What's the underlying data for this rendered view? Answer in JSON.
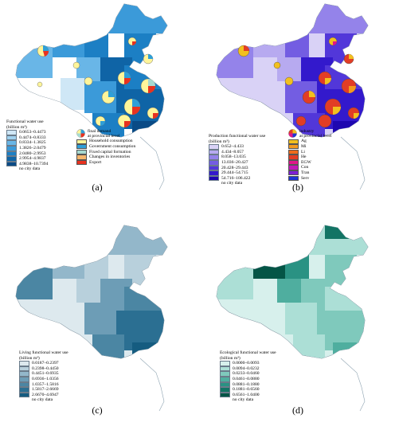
{
  "panels": {
    "a": {
      "caption": "(a)",
      "legend_title": [
        "Functional water use",
        "(billion m³)"
      ],
      "classes": [
        {
          "label": "0.0653–0.4473",
          "color": "#cfe7f6"
        },
        {
          "label": "0.4474–0.8333",
          "color": "#9fd1ef"
        },
        {
          "label": "0.8334–1.3825",
          "color": "#69b6e7"
        },
        {
          "label": "1.3826–2.0479",
          "color": "#3b9ad9"
        },
        {
          "label": "2.0480–2.9953",
          "color": "#1c7fc4"
        },
        {
          "label": "2.9954–4.9837",
          "color": "#0f64a6"
        },
        {
          "label": "4.9838–10.7394",
          "color": "#0a4b86"
        },
        {
          "label": "no city data",
          "color": "#ffffff"
        }
      ],
      "pie_legend_title": [
        "final demand",
        "at provincial level"
      ],
      "pie_categories": [
        {
          "label": "Household  consumption",
          "color": "#fff59a"
        },
        {
          "label": "Government consumption",
          "color": "#2f9fd8"
        },
        {
          "label": "Fixed capital formation",
          "color": "#a7d9d0"
        },
        {
          "label": "Changes in inventories",
          "color": "#f6b66c"
        },
        {
          "label": "Export",
          "color": "#e8321f"
        }
      ]
    },
    "b": {
      "caption": "(b)",
      "legend_title": [
        "Production functional water use",
        "(billion m³)"
      ],
      "classes": [
        {
          "label": "0.652–4.433",
          "color": "#d9d2f6"
        },
        {
          "label": "4.434–8.057",
          "color": "#b7aaf0"
        },
        {
          "label": "8.058–13.035",
          "color": "#9483ea"
        },
        {
          "label": "13.036–20.427",
          "color": "#735de2"
        },
        {
          "label": "20.428–29.443",
          "color": "#5237d9"
        },
        {
          "label": "29.444–54.715",
          "color": "#3319cc"
        },
        {
          "label": "54.716–106.422",
          "color": "#1e07b0"
        },
        {
          "label": "no city data",
          "color": "#ffffff"
        }
      ],
      "pie_legend_title": [
        "industry",
        "at provincial level"
      ],
      "pie_categories": [
        {
          "label": "Ag",
          "color": "#f2c01f"
        },
        {
          "label": "Mi",
          "color": "#f39a1f"
        },
        {
          "label": "Li",
          "color": "#ee6c1c"
        },
        {
          "label": "He",
          "color": "#e23d25"
        },
        {
          "label": "EGW",
          "color": "#e0168a"
        },
        {
          "label": "Con",
          "color": "#c218b9"
        },
        {
          "label": "Tran",
          "color": "#7d1fd3"
        },
        {
          "label": "Serv",
          "color": "#1f35d4"
        }
      ]
    },
    "c": {
      "caption": "(c)",
      "legend_title": [
        "Living functional water use",
        "(billion m³)"
      ],
      "classes": [
        {
          "label": "0.0187–0.2397",
          "color": "#dde9ee"
        },
        {
          "label": "0.2398–0.4450",
          "color": "#b8d0dc"
        },
        {
          "label": "0.4451–0.6935",
          "color": "#93b7ca"
        },
        {
          "label": "0.6936–1.0356",
          "color": "#6d9db6"
        },
        {
          "label": "1.0357–1.5816",
          "color": "#4b86a3"
        },
        {
          "label": "1.5817–2.6669",
          "color": "#2b6f92"
        },
        {
          "label": "2.6670–4.6947",
          "color": "#155c80"
        },
        {
          "label": "no city data",
          "color": "#ffffff"
        }
      ]
    },
    "d": {
      "caption": "(d)",
      "legend_title": [
        "Ecological functional water use",
        "(billion m³)"
      ],
      "classes": [
        {
          "label": "0.0000–0.0093",
          "color": "#d7f0ec"
        },
        {
          "label": "0.0094–0.0232",
          "color": "#acdfd6"
        },
        {
          "label": "0.0233–0.0460",
          "color": "#7fc9bc"
        },
        {
          "label": "0.0461–0.0880",
          "color": "#4fae9f"
        },
        {
          "label": "0.0881–0.1880",
          "color": "#2a9283"
        },
        {
          "label": "0.1881–0.6560",
          "color": "#127464"
        },
        {
          "label": "0.6561–1.0400",
          "color": "#045546"
        },
        {
          "label": "no city data",
          "color": "#ffffff"
        }
      ]
    }
  }
}
